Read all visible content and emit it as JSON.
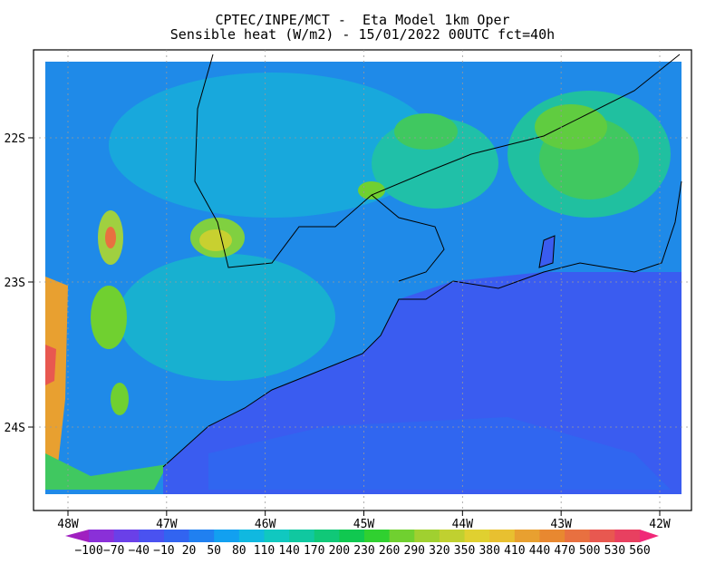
{
  "header": {
    "title": "CPTEC/INPE/MCT -  Eta Model 1km Oper",
    "subtitle": "Sensible heat (W/m2) - 15/01/2022 00UTC fct=40h"
  },
  "map": {
    "lat_labels": [
      "22S",
      "23S",
      "24S"
    ],
    "lon_labels": [
      "48W",
      "47W",
      "46W",
      "45W",
      "44W",
      "43W",
      "42W"
    ]
  },
  "colorbar": {
    "labels": [
      "−100",
      "−70",
      "−40",
      "−10",
      "20",
      "50",
      "80",
      "110",
      "140",
      "170",
      "200",
      "230",
      "260",
      "290",
      "320",
      "350",
      "380",
      "410",
      "440",
      "470",
      "500",
      "530",
      "560"
    ],
    "colors": [
      "#a020c0",
      "#8a30d8",
      "#6a40e8",
      "#4a52f0",
      "#3264f0",
      "#2080f0",
      "#12a0f0",
      "#10b8e0",
      "#10c8c0",
      "#10c8a0",
      "#10c878",
      "#10c850",
      "#30d030",
      "#70d030",
      "#a0d030",
      "#c0d030",
      "#e0d030",
      "#e8c030",
      "#e8a030",
      "#e88830",
      "#e87040",
      "#e85850",
      "#e84060",
      "#f02878"
    ]
  }
}
